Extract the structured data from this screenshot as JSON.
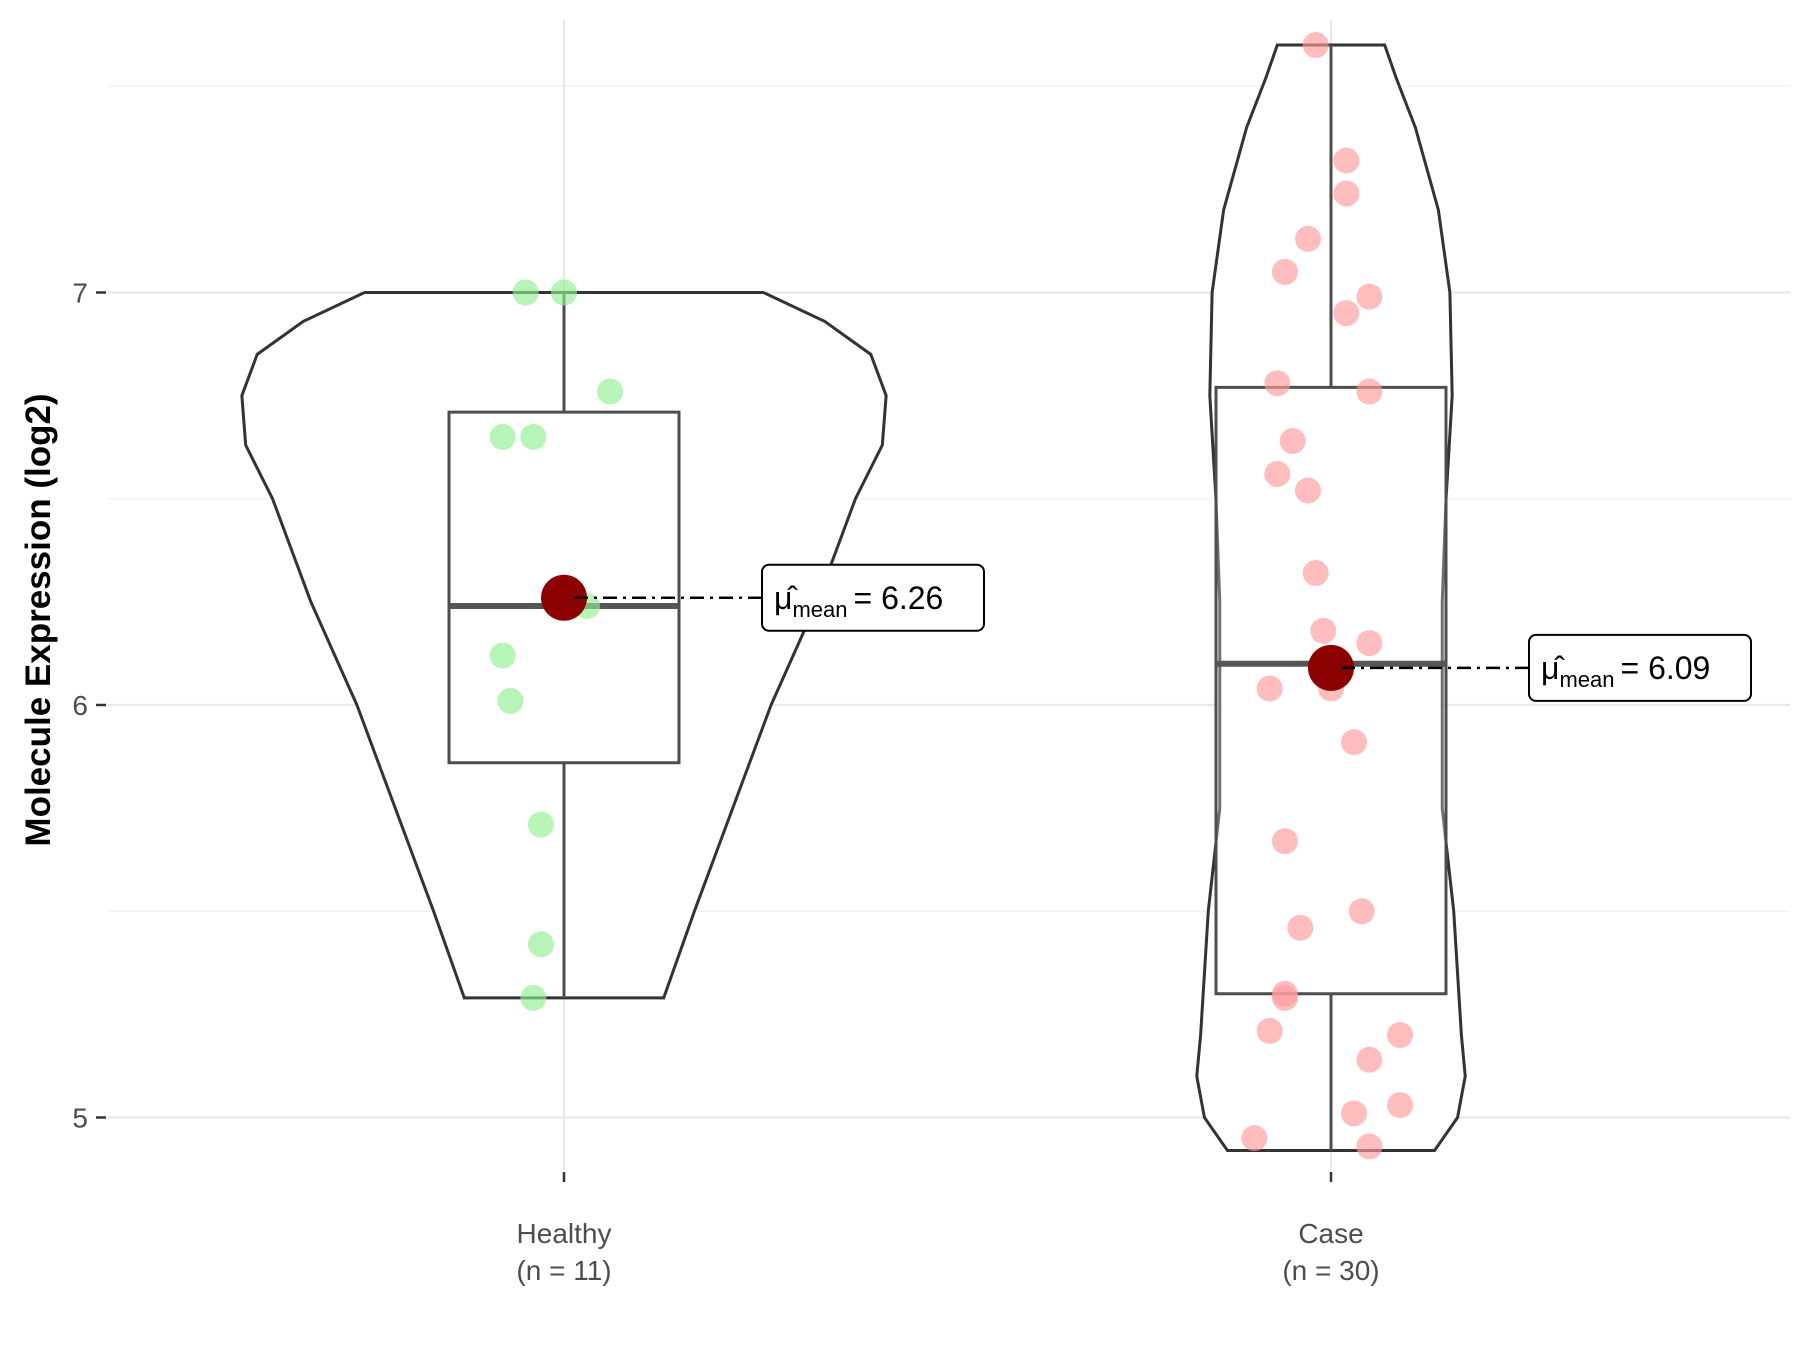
{
  "chart_data": {
    "type": "violin",
    "ylabel": "Molecule Expression (log2)",
    "xlabel": "",
    "ylim": [
      4.8,
      7.68
    ],
    "yticks": [
      5,
      6,
      7
    ],
    "grid": true,
    "groups": [
      {
        "name": "Healthy",
        "n_label": "(n = 11)",
        "color": "#90ee90",
        "violin_min": 5.29,
        "violin_max": 7.0,
        "box": {
          "q1": 5.86,
          "median": 6.24,
          "q3": 6.71,
          "whisker_low": 5.29,
          "whisker_high": 7.0
        },
        "mean": 6.26,
        "mean_label": {
          "symbol": "μ̂",
          "sub": "mean",
          "text": "= 6.26"
        },
        "points": [
          {
            "x": 0.95,
            "y": 7.0
          },
          {
            "x": 1.0,
            "y": 7.0
          },
          {
            "x": 1.06,
            "y": 6.76
          },
          {
            "x": 0.92,
            "y": 6.65
          },
          {
            "x": 0.96,
            "y": 6.65
          },
          {
            "x": 1.03,
            "y": 6.24
          },
          {
            "x": 0.92,
            "y": 6.12
          },
          {
            "x": 0.93,
            "y": 6.01
          },
          {
            "x": 0.97,
            "y": 5.71
          },
          {
            "x": 0.97,
            "y": 5.42
          },
          {
            "x": 0.96,
            "y": 5.29
          }
        ],
        "density": [
          [
            5.29,
            0.13
          ],
          [
            5.5,
            0.17
          ],
          [
            5.75,
            0.22
          ],
          [
            6.0,
            0.27
          ],
          [
            6.25,
            0.33
          ],
          [
            6.5,
            0.38
          ],
          [
            6.63,
            0.415
          ],
          [
            6.75,
            0.42
          ],
          [
            6.85,
            0.4
          ],
          [
            6.93,
            0.34
          ],
          [
            7.0,
            0.26
          ]
        ]
      },
      {
        "name": "Case",
        "n_label": "(n = 30)",
        "color": "#ff9999",
        "violin_min": 4.92,
        "violin_max": 7.6,
        "box": {
          "q1": 5.3,
          "median": 6.1,
          "q3": 6.77,
          "whisker_low": 4.92,
          "whisker_high": 7.6
        },
        "mean": 6.09,
        "mean_label": {
          "symbol": "μ̂",
          "sub": "mean",
          "text": "= 6.09"
        },
        "points": [
          {
            "x": 1.98,
            "y": 7.6
          },
          {
            "x": 2.02,
            "y": 7.32
          },
          {
            "x": 2.02,
            "y": 7.24
          },
          {
            "x": 1.97,
            "y": 7.13
          },
          {
            "x": 1.94,
            "y": 7.05
          },
          {
            "x": 2.05,
            "y": 6.99
          },
          {
            "x": 2.02,
            "y": 6.95
          },
          {
            "x": 1.93,
            "y": 6.78
          },
          {
            "x": 2.05,
            "y": 6.76
          },
          {
            "x": 1.95,
            "y": 6.64
          },
          {
            "x": 1.93,
            "y": 6.56
          },
          {
            "x": 1.97,
            "y": 6.52
          },
          {
            "x": 1.98,
            "y": 6.32
          },
          {
            "x": 1.99,
            "y": 6.18
          },
          {
            "x": 2.05,
            "y": 6.15
          },
          {
            "x": 2.0,
            "y": 6.04
          },
          {
            "x": 1.92,
            "y": 6.04
          },
          {
            "x": 2.03,
            "y": 5.91
          },
          {
            "x": 1.94,
            "y": 5.67
          },
          {
            "x": 2.04,
            "y": 5.5
          },
          {
            "x": 1.96,
            "y": 5.46
          },
          {
            "x": 1.94,
            "y": 5.3
          },
          {
            "x": 1.94,
            "y": 5.29
          },
          {
            "x": 1.92,
            "y": 5.21
          },
          {
            "x": 2.09,
            "y": 5.2
          },
          {
            "x": 2.05,
            "y": 5.14
          },
          {
            "x": 2.09,
            "y": 5.03
          },
          {
            "x": 2.03,
            "y": 5.01
          },
          {
            "x": 1.9,
            "y": 4.95
          },
          {
            "x": 2.05,
            "y": 4.93
          }
        ],
        "density": [
          [
            4.92,
            0.135
          ],
          [
            5.0,
            0.165
          ],
          [
            5.1,
            0.175
          ],
          [
            5.2,
            0.17
          ],
          [
            5.35,
            0.165
          ],
          [
            5.5,
            0.16
          ],
          [
            5.75,
            0.145
          ],
          [
            6.0,
            0.145
          ],
          [
            6.25,
            0.145
          ],
          [
            6.5,
            0.15
          ],
          [
            6.75,
            0.158
          ],
          [
            7.0,
            0.155
          ],
          [
            7.2,
            0.14
          ],
          [
            7.4,
            0.11
          ],
          [
            7.52,
            0.085
          ],
          [
            7.6,
            0.07
          ]
        ]
      }
    ]
  }
}
